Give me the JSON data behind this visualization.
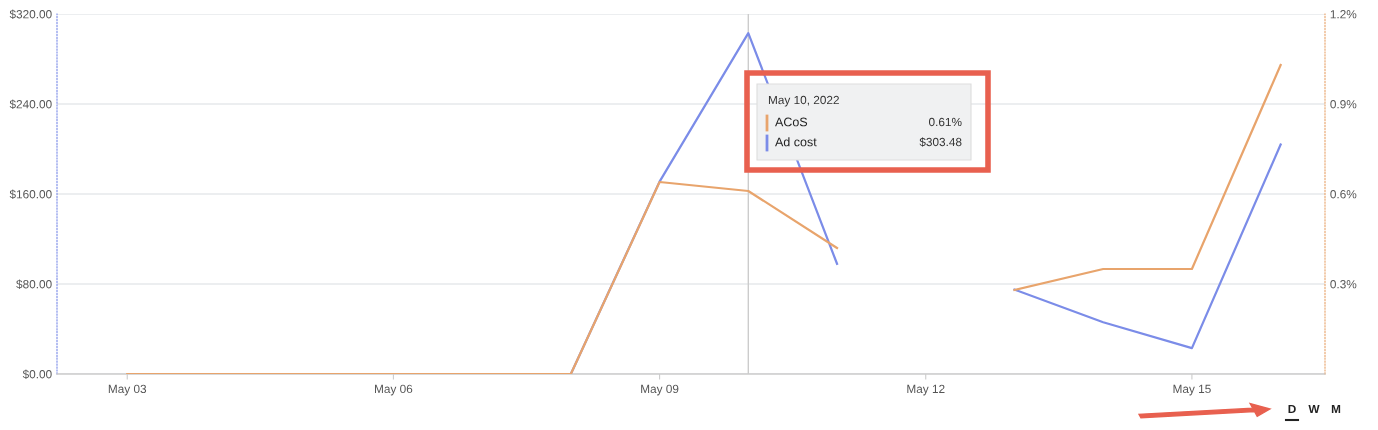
{
  "chart_data": {
    "type": "line",
    "x": [
      "2022-05-03",
      "2022-05-04",
      "2022-05-05",
      "2022-05-06",
      "2022-05-07",
      "2022-05-08",
      "2022-05-09",
      "2022-05-10",
      "2022-05-11",
      "2022-05-12",
      "2022-05-13",
      "2022-05-14",
      "2022-05-15",
      "2022-05-16"
    ],
    "series": [
      {
        "name": "ACoS",
        "color": "#e8a46c",
        "axis": "y2",
        "values": [
          0,
          0,
          0,
          0,
          0,
          0,
          0.64,
          0.61,
          0.42,
          null,
          0.28,
          0.35,
          0.35,
          1.03
        ]
      },
      {
        "name": "Ad cost",
        "color": "#7b8ce8",
        "values": [
          null,
          null,
          null,
          null,
          null,
          0,
          171,
          303,
          98,
          null,
          75,
          46,
          23,
          204
        ]
      }
    ],
    "xlim": [
      "2022-05-02T05:00",
      "2022-05-16T12:00"
    ],
    "xticks": [
      {
        "value": "2022-05-03",
        "label": "May 03"
      },
      {
        "value": "2022-05-06",
        "label": "May 06"
      },
      {
        "value": "2022-05-09",
        "label": "May 09"
      },
      {
        "value": "2022-05-12",
        "label": "May 12"
      },
      {
        "value": "2022-05-15",
        "label": "May 15"
      }
    ],
    "ylim": [
      0,
      320
    ],
    "yticks": [
      {
        "value": 0,
        "label": "$0.00"
      },
      {
        "value": 80,
        "label": "$80.00"
      },
      {
        "value": 160,
        "label": "$160.00"
      },
      {
        "value": 240,
        "label": "$240.00"
      },
      {
        "value": 320,
        "label": "$320.00"
      }
    ],
    "y2lim": [
      0,
      1.2
    ],
    "y2ticks": [
      {
        "value": 0,
        "label": null
      },
      {
        "value": 0.3,
        "label": "0.3%"
      },
      {
        "value": 0.6,
        "label": "0.6%"
      },
      {
        "value": 0.9,
        "label": "0.9%"
      },
      {
        "value": 1.2,
        "label": "1.2%"
      }
    ],
    "ref_lines": [
      {
        "axis": "x",
        "value": "2022-05-10",
        "color": "#cccccc"
      }
    ],
    "annotations": [
      "May 10, 2022",
      "0.61%",
      "$303.48",
      "D",
      "W",
      "M"
    ],
    "grid": "y",
    "legend": "top",
    "marker": "none",
    "line_style": "solid"
  }
}
